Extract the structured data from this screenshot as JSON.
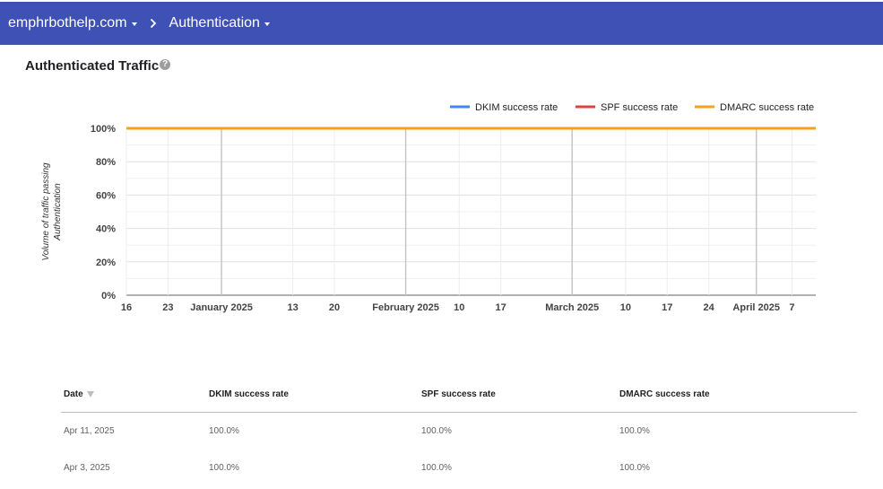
{
  "header": {
    "domain_label": "emphrbothelp.com",
    "section_label": "Authentication"
  },
  "page": {
    "title": "Authenticated Traffic",
    "help_glyph": "?"
  },
  "chart_data": {
    "type": "line",
    "ylabel_lines": [
      "Volume of traffic passing",
      "Authentication"
    ],
    "ylim": [
      0,
      100
    ],
    "y_ticks": [
      "100%",
      "80%",
      "60%",
      "40%",
      "20%",
      "0%"
    ],
    "y_tick_values": [
      100,
      80,
      60,
      40,
      20,
      0
    ],
    "x_ticks": [
      {
        "label": "16",
        "date": "2024-12-16"
      },
      {
        "label": "23",
        "date": "2024-12-23"
      },
      {
        "label": "January 2025",
        "date": "2025-01-01"
      },
      {
        "label": "13",
        "date": "2025-01-13"
      },
      {
        "label": "20",
        "date": "2025-01-20"
      },
      {
        "label": "February 2025",
        "date": "2025-02-01"
      },
      {
        "label": "10",
        "date": "2025-02-10"
      },
      {
        "label": "17",
        "date": "2025-02-17"
      },
      {
        "label": "March 2025",
        "date": "2025-03-01"
      },
      {
        "label": "10",
        "date": "2025-03-10"
      },
      {
        "label": "17",
        "date": "2025-03-17"
      },
      {
        "label": "24",
        "date": "2025-03-24"
      },
      {
        "label": "April 2025",
        "date": "2025-04-01"
      },
      {
        "label": "7",
        "date": "2025-04-07"
      }
    ],
    "x_range": [
      "2024-12-16",
      "2025-04-11"
    ],
    "month_markers": [
      "2025-01-01",
      "2025-02-01",
      "2025-03-01",
      "2025-04-01"
    ],
    "grid": true,
    "legend_position": "top-right",
    "series": [
      {
        "name": "DKIM success rate",
        "color": "#4285f4",
        "x": [
          "2024-12-16",
          "2025-04-11"
        ],
        "y": [
          100,
          100
        ]
      },
      {
        "name": "SPF success rate",
        "color": "#db4437",
        "x": [
          "2024-12-16",
          "2025-04-11"
        ],
        "y": [
          100,
          100
        ]
      },
      {
        "name": "DMARC success rate",
        "color": "#f4a21c",
        "x": [
          "2024-12-16",
          "2025-04-11"
        ],
        "y": [
          100,
          100
        ]
      }
    ]
  },
  "table": {
    "columns": [
      "Date",
      "DKIM success rate",
      "SPF success rate",
      "DMARC success rate"
    ],
    "rows": [
      [
        "Apr 11, 2025",
        "100.0%",
        "100.0%",
        "100.0%"
      ],
      [
        "Apr 3, 2025",
        "100.0%",
        "100.0%",
        "100.0%"
      ]
    ]
  },
  "colors": {
    "header_bg": "#3f51b5",
    "axis": "#616161",
    "grid": "#e0e0e0"
  }
}
